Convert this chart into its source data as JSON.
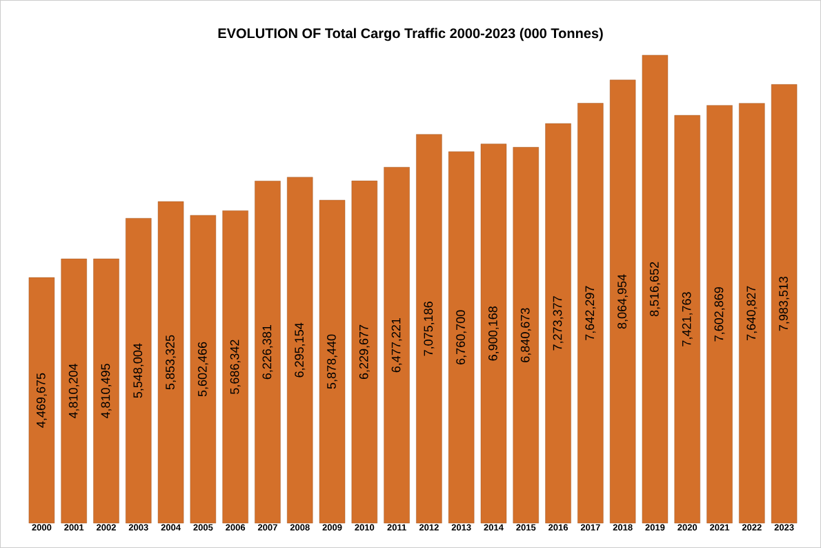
{
  "chart_data": {
    "type": "bar",
    "title": "EVOLUTION OF Total Cargo Traffic 2000-2023 (000 Tonnes)",
    "categories": [
      "2000",
      "2001",
      "2002",
      "2003",
      "2004",
      "2005",
      "2006",
      "2007",
      "2008",
      "2009",
      "2010",
      "2011",
      "2012",
      "2013",
      "2014",
      "2015",
      "2016",
      "2017",
      "2018",
      "2019",
      "2020",
      "2021",
      "2022",
      "2023"
    ],
    "values": [
      4469675,
      4810204,
      4810495,
      5548004,
      5853325,
      5602466,
      5686342,
      6226381,
      6295154,
      5878440,
      6229677,
      6477221,
      7075186,
      6760700,
      6900168,
      6840673,
      7273377,
      7642297,
      8064954,
      8516652,
      7421763,
      7602869,
      7640827,
      7983513
    ],
    "value_labels": [
      "4,469,675",
      "4,810,204",
      "4,810,495",
      "5,548,004",
      "5,853,325",
      "5,602,466",
      "5,686,342",
      "6,226,381",
      "6,295,154",
      "5,878,440",
      "6,229,677",
      "6,477,221",
      "7,075,186",
      "6,760,700",
      "6,900,168",
      "6,840,673",
      "7,273,377",
      "7,642,297",
      "8,064,954",
      "8,516,652",
      "7,421,763",
      "7,602,869",
      "7,640,827",
      "7,983,513"
    ],
    "color": "#d4702a"
  }
}
